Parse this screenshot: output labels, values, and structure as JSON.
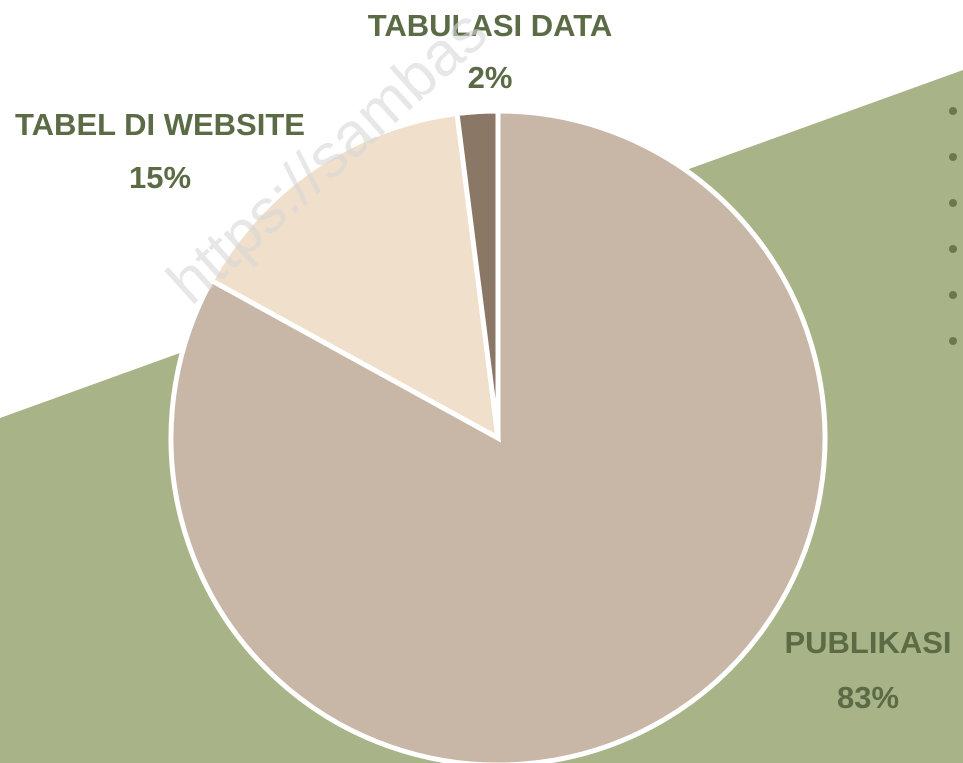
{
  "chart_data": {
    "type": "pie",
    "categories": [
      "PUBLIKASI",
      "TABEL DI WEBSITE",
      "TABULASI DATA"
    ],
    "values": [
      83,
      15,
      2
    ],
    "value_labels": [
      "83%",
      "15%",
      "2%"
    ],
    "colors": [
      "#c8b6a6",
      "#f0dfca",
      "#8b7765"
    ],
    "label_color": "#5b6b45",
    "watermark": "https://sambas"
  }
}
